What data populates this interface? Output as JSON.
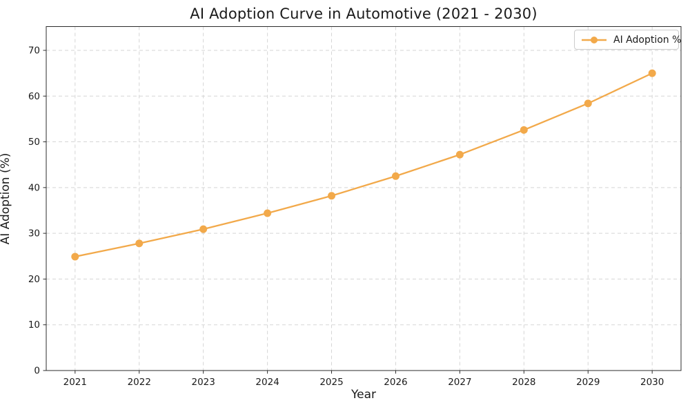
{
  "chart_data": {
    "type": "line",
    "title": "AI Adoption Curve in Automotive (2021 - 2030)",
    "xlabel": "Year",
    "ylabel": "AI Adoption (%)",
    "categories": [
      2021,
      2022,
      2023,
      2024,
      2025,
      2026,
      2027,
      2028,
      2029,
      2030
    ],
    "series": [
      {
        "name": "AI Adoption %",
        "values": [
          24.9,
          27.8,
          30.9,
          34.4,
          38.2,
          42.5,
          47.2,
          52.6,
          58.4,
          65.0
        ],
        "color": "#F2A94A",
        "marker": "circle"
      }
    ],
    "ylim": [
      0,
      75.2
    ],
    "yticks": [
      0,
      10,
      20,
      30,
      40,
      50,
      60,
      70
    ],
    "grid": true,
    "grid_style": "dashed",
    "legend_position": "upper-right"
  },
  "figure": {
    "background_color": "#ffffff",
    "grid_color": "#d5d5d5",
    "spine_color": "#2b2b2b",
    "tick_text_color": "#1a1a1a",
    "line_color": "#F2A94A"
  }
}
